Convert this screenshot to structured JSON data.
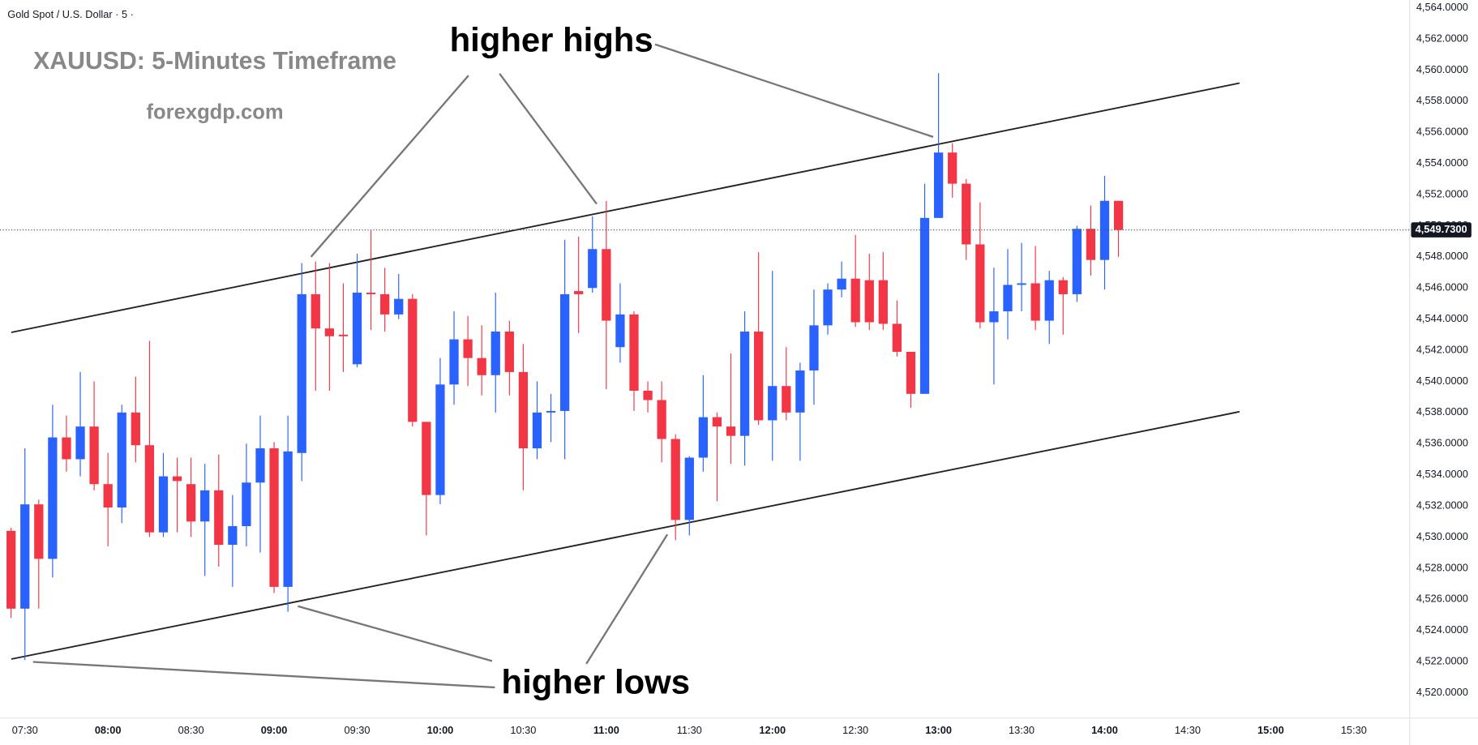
{
  "chart_data": {
    "type": "candlestick",
    "title": "Gold Spot / U.S. Dollar · 5 ·",
    "annotations": [
      "XAUUSD: 5-Minutes Timeframe",
      "forexgdp.com",
      "higher highs",
      "higher lows"
    ],
    "x": [
      "07:25",
      "07:30",
      "07:35",
      "07:40",
      "07:45",
      "07:50",
      "07:55",
      "08:00",
      "08:05",
      "08:10",
      "08:15",
      "08:20",
      "08:25",
      "08:30",
      "08:35",
      "08:40",
      "08:45",
      "08:50",
      "08:55",
      "09:00",
      "09:05",
      "09:10",
      "09:15",
      "09:20",
      "09:25",
      "09:30",
      "09:35",
      "09:40",
      "09:45",
      "09:50",
      "09:55",
      "10:00",
      "10:05",
      "10:10",
      "10:15",
      "10:20",
      "10:25",
      "10:30",
      "10:35",
      "10:40",
      "10:45",
      "10:50",
      "10:55",
      "11:00",
      "11:05",
      "11:10",
      "11:15",
      "11:20",
      "11:25",
      "11:30",
      "11:35",
      "11:40",
      "11:45",
      "11:50",
      "11:55",
      "12:00",
      "12:05",
      "12:10",
      "12:15",
      "12:20",
      "12:25",
      "12:30",
      "12:35",
      "12:40",
      "12:45",
      "12:50",
      "12:55",
      "13:00",
      "13:05",
      "13:10",
      "13:15",
      "13:20",
      "13:25",
      "13:30",
      "13:35",
      "13:40",
      "13:45",
      "13:50",
      "13:55",
      "14:00",
      "14:05"
    ],
    "open": [
      4530.4,
      4525.4,
      4532.1,
      4528.6,
      4536.4,
      4535.0,
      4537.1,
      4533.4,
      4531.9,
      4538.0,
      4535.9,
      4530.3,
      4533.9,
      4533.4,
      4531.0,
      4533.0,
      4529.5,
      4530.7,
      4533.5,
      4535.7,
      4526.8,
      4535.4,
      4545.6,
      4543.4,
      4543.0,
      4541.1,
      4545.7,
      4545.6,
      4544.3,
      4545.3,
      4537.4,
      4532.7,
      4539.8,
      4542.7,
      4541.5,
      4540.4,
      4543.2,
      4540.6,
      4535.7,
      4538.0,
      4538.1,
      4545.8,
      4546.0,
      4548.5,
      4542.2,
      4544.3,
      4539.4,
      4538.8,
      4536.3,
      4531.1,
      4535.1,
      4537.7,
      4537.1,
      4536.5,
      4543.2,
      4537.5,
      4539.7,
      4538.0,
      4540.7,
      4543.6,
      4545.9,
      4546.6,
      4546.5,
      4546.5,
      4543.7,
      4541.9,
      4539.2,
      4550.5,
      4554.7,
      4552.7,
      4548.8,
      4543.8,
      4544.5,
      4546.2,
      4546.3,
      4543.9,
      4546.5,
      4545.6,
      4549.8,
      4547.8,
      4551.6
    ],
    "high": [
      4530.6,
      4535.7,
      4532.4,
      4538.5,
      4537.8,
      4540.6,
      4540.0,
      4535.4,
      4538.5,
      4540.3,
      4542.6,
      4535.4,
      4535.1,
      4535.1,
      4534.7,
      4535.3,
      4532.7,
      4536.0,
      4537.8,
      4536.1,
      4537.8,
      4547.6,
      4547.7,
      4547.6,
      4546.3,
      4548.2,
      4549.7,
      4547.3,
      4546.9,
      4545.6,
      4537.4,
      4541.5,
      4544.5,
      4544.2,
      4543.6,
      4545.7,
      4543.9,
      4542.4,
      4540.0,
      4539.2,
      4549.1,
      4549.3,
      4550.6,
      4551.6,
      4546.3,
      4544.5,
      4540.0,
      4540.0,
      4536.6,
      4535.2,
      4540.4,
      4538.0,
      4541.8,
      4544.5,
      4548.3,
      4547.1,
      4542.2,
      4541.2,
      4545.9,
      4546.3,
      4547.7,
      4549.4,
      4548.2,
      4548.3,
      4545.2,
      4541.9,
      4552.7,
      4559.8,
      4555.3,
      4553.0,
      4551.5,
      4547.3,
      4548.5,
      4548.9,
      4548.7,
      4547.1,
      4546.7,
      4550.0,
      4551.3,
      4553.2,
      4551.6
    ],
    "low": [
      4524.8,
      4522.1,
      4525.4,
      4527.4,
      4534.2,
      4533.9,
      4533.0,
      4529.4,
      4530.9,
      4534.8,
      4530.0,
      4530.0,
      4530.3,
      4530.0,
      4527.5,
      4528.1,
      4526.8,
      4529.4,
      4529.0,
      4526.4,
      4525.2,
      4533.6,
      4539.4,
      4539.4,
      4540.6,
      4540.9,
      4543.3,
      4543.2,
      4544.0,
      4537.1,
      4530.1,
      4532.1,
      4538.5,
      4539.7,
      4539.1,
      4538.0,
      4539.1,
      4533.0,
      4535.0,
      4536.1,
      4535.0,
      4543.1,
      4545.7,
      4539.5,
      4541.2,
      4538.1,
      4538.0,
      4534.8,
      4529.8,
      4530.1,
      4534.2,
      4532.3,
      4534.7,
      4534.6,
      4537.2,
      4534.9,
      4537.5,
      4534.9,
      4538.5,
      4543.0,
      4545.4,
      4543.5,
      4543.3,
      4543.3,
      4541.6,
      4538.3,
      4539.2,
      4550.5,
      4551.8,
      4547.8,
      4543.4,
      4539.8,
      4542.7,
      4544.5,
      4543.3,
      4542.4,
      4543.0,
      4545.1,
      4546.8,
      4545.9,
      4548.0
    ],
    "close": [
      4525.4,
      4532.1,
      4528.6,
      4536.4,
      4535.0,
      4537.1,
      4533.4,
      4531.9,
      4538.0,
      4535.9,
      4530.3,
      4533.9,
      4533.6,
      4531.0,
      4533.0,
      4529.5,
      4530.7,
      4533.5,
      4535.7,
      4526.8,
      4535.5,
      4545.6,
      4543.4,
      4542.9,
      4542.9,
      4545.7,
      4545.6,
      4544.3,
      4545.3,
      4537.4,
      4532.7,
      4539.8,
      4542.7,
      4541.5,
      4540.4,
      4543.2,
      4540.6,
      4535.7,
      4538.0,
      4538.1,
      4545.6,
      4545.6,
      4548.5,
      4543.9,
      4544.3,
      4539.4,
      4538.8,
      4536.3,
      4531.1,
      4535.1,
      4537.7,
      4537.1,
      4536.5,
      4543.2,
      4537.5,
      4539.7,
      4538.0,
      4540.7,
      4543.6,
      4545.9,
      4546.6,
      4543.8,
      4543.8,
      4543.7,
      4541.9,
      4539.2,
      4550.5,
      4554.7,
      4552.7,
      4548.8,
      4543.8,
      4544.5,
      4546.2,
      4546.3,
      4543.9,
      4546.5,
      4545.6,
      4549.8,
      4547.8,
      4551.6,
      4549.73
    ],
    "up_color": "#2962ff",
    "down_color": "#f23645",
    "last_price": {
      "value": 4549.73,
      "label": "4,549.7300"
    },
    "xlim": [
      "07:21",
      "15:50"
    ],
    "xticks": [
      "07:30",
      "08:00",
      "08:30",
      "09:00",
      "09:30",
      "10:00",
      "10:30",
      "11:00",
      "11:30",
      "12:00",
      "12:30",
      "13:00",
      "13:30",
      "14:00",
      "14:30",
      "15:00",
      "15:30"
    ],
    "ylim": [
      4518.4,
      4564.5
    ],
    "yticks": [
      {
        "value": 4520,
        "label": "4,520.0000"
      },
      {
        "value": 4522,
        "label": "4,522.0000"
      },
      {
        "value": 4524,
        "label": "4,524.0000"
      },
      {
        "value": 4526,
        "label": "4,526.0000"
      },
      {
        "value": 4528,
        "label": "4,528.0000"
      },
      {
        "value": 4530,
        "label": "4,530.0000"
      },
      {
        "value": 4532,
        "label": "4,532.0000"
      },
      {
        "value": 4534,
        "label": "4,534.0000"
      },
      {
        "value": 4536,
        "label": "4,536.0000"
      },
      {
        "value": 4538,
        "label": "4,538.0000"
      },
      {
        "value": 4540,
        "label": "4,540.0000"
      },
      {
        "value": 4542,
        "label": "4,542.0000"
      },
      {
        "value": 4544,
        "label": "4,544.0000"
      },
      {
        "value": 4546,
        "label": "4,546.0000"
      },
      {
        "value": 4548,
        "label": "4,548.0000"
      },
      {
        "value": 4550,
        "label": "4,550.0000"
      },
      {
        "value": 4552,
        "label": "4,552.0000"
      },
      {
        "value": 4554,
        "label": "4,554.0000"
      },
      {
        "value": 4556,
        "label": "4,556.0000"
      },
      {
        "value": 4558,
        "label": "4,558.0000"
      },
      {
        "value": 4560,
        "label": "4,560.0000"
      },
      {
        "value": 4562,
        "label": "4,562.0000"
      },
      {
        "value": 4564,
        "label": "4,564.0000"
      }
    ],
    "grid": false
  }
}
